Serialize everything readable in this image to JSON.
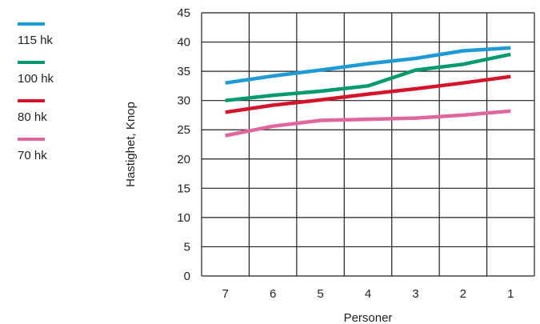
{
  "chart_data": {
    "type": "line",
    "xlabel": "Personer",
    "ylabel": "Hastighet, Knop",
    "categories": [
      "7",
      "6",
      "5",
      "4",
      "3",
      "2",
      "1"
    ],
    "ylim": [
      0,
      45
    ],
    "yticks": [
      0,
      5,
      10,
      15,
      20,
      25,
      30,
      35,
      40,
      45
    ],
    "grid": true,
    "legend_position": "left",
    "series": [
      {
        "name": "115 hk",
        "color": "#1e9ad6",
        "values": [
          33,
          34.2,
          35.2,
          36.3,
          37.2,
          38.5,
          39
        ]
      },
      {
        "name": "100 hk",
        "color": "#009a6e",
        "values": [
          30,
          30.9,
          31.6,
          32.5,
          35.2,
          36.2,
          37.9
        ]
      },
      {
        "name": "80 hk",
        "color": "#d4142b",
        "values": [
          28,
          29.2,
          30.1,
          31.1,
          32,
          33,
          34.1
        ]
      },
      {
        "name": "70 hk",
        "color": "#e2669e",
        "values": [
          24,
          25.6,
          26.6,
          26.8,
          27,
          27.5,
          28.2
        ]
      }
    ]
  }
}
